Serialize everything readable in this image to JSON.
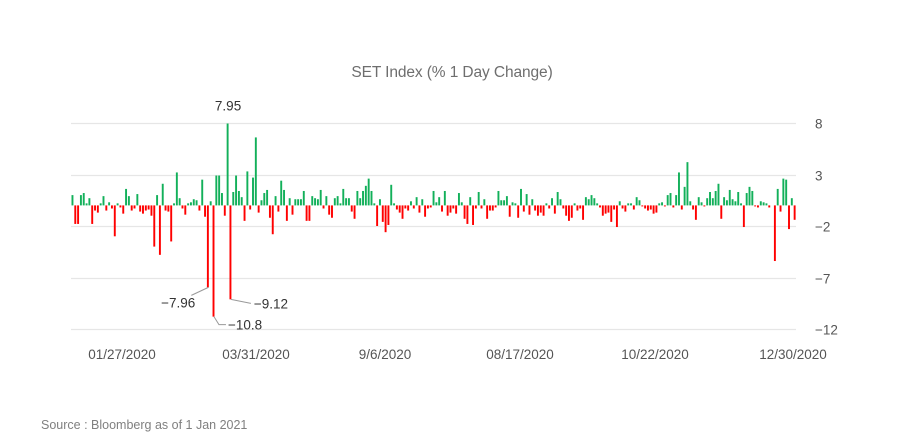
{
  "chart_data": {
    "type": "bar",
    "title": "SET Index (% 1 Day Change)",
    "xlabel": "",
    "ylabel": "",
    "ylim": [
      -12,
      8
    ],
    "yticks": [
      8,
      3,
      -2,
      -7,
      -12
    ],
    "y_axis_position": "right",
    "grid": true,
    "legend": null,
    "x_tick_labels": [
      "01/27/2020",
      "03/31/2020",
      "9/6/2020",
      "08/17/2020",
      "10/22/2020",
      "12/30/2020"
    ],
    "x_tick_index": [
      14,
      56,
      107,
      157,
      207,
      249
    ],
    "positive_color": "#12b05a",
    "negative_color": "#ff0000",
    "gridline_color": "#e6e6e6",
    "annotations": [
      {
        "index": 55,
        "value": 7.95,
        "label": "7.95"
      },
      {
        "index": 48,
        "value": -7.96,
        "label": "-7.96"
      },
      {
        "index": 50,
        "value": -10.8,
        "label": "-10.8"
      },
      {
        "index": 56,
        "value": -9.12,
        "label": "-9.12"
      }
    ],
    "values": [
      1.0,
      -1.8,
      -1.8,
      1.0,
      1.2,
      0.2,
      0.7,
      -1.8,
      -0.5,
      -0.7,
      0.2,
      0.9,
      -0.5,
      0.3,
      -0.3,
      -3.0,
      0.2,
      -0.2,
      -0.8,
      1.6,
      0.9,
      -0.5,
      -0.3,
      1.1,
      -0.6,
      -0.8,
      -0.5,
      -0.4,
      -1.0,
      -4.0,
      1.0,
      -4.8,
      2.1,
      -0.5,
      -0.6,
      -3.5,
      0.2,
      3.2,
      0.7,
      -0.3,
      -0.9,
      0.2,
      0.3,
      0.6,
      0.5,
      -0.5,
      2.5,
      -1.1,
      -7.96,
      0.4,
      -10.8,
      2.9,
      2.9,
      1.2,
      -1.0,
      7.95,
      -9.12,
      1.3,
      2.9,
      1.4,
      0.8,
      -1.5,
      3.3,
      -0.4,
      2.7,
      6.6,
      -0.7,
      0.5,
      1.2,
      1.5,
      -1.2,
      -2.8,
      0.9,
      -0.6,
      2.4,
      1.5,
      -1.5,
      0.7,
      -0.9,
      0.6,
      0.6,
      0.6,
      1.4,
      -1.5,
      -1.5,
      0.9,
      0.7,
      0.6,
      1.5,
      -0.3,
      0.9,
      -0.9,
      -1.2,
      0.7,
      0.9,
      0.2,
      1.6,
      0.7,
      0.7,
      -0.6,
      -1.3,
      1.4,
      0.7,
      1.4,
      1.9,
      2.6,
      1.4,
      0.2,
      -2.0,
      0.6,
      -1.6,
      -2.6,
      -1.9,
      2.0,
      0.2,
      -0.4,
      -0.7,
      -1.3,
      -0.3,
      -0.5,
      0.4,
      -0.3,
      0.8,
      -0.7,
      0.6,
      -1.1,
      -0.3,
      -0.2,
      1.4,
      0.3,
      0.8,
      -0.6,
      1.4,
      -1.0,
      -0.7,
      -0.3,
      -0.8,
      1.2,
      0.3,
      -1.3,
      -1.8,
      0.8,
      -1.9,
      -0.3,
      1.3,
      -0.3,
      0.6,
      -1.3,
      -0.5,
      -0.5,
      -0.2,
      1.4,
      0.5,
      0.5,
      0.9,
      -1.1,
      0.3,
      0.2,
      -1.2,
      1.6,
      -0.6,
      1.1,
      -0.9,
      0.6,
      -0.5,
      -1.0,
      -0.7,
      -1.0,
      0.2,
      -0.3,
      0.7,
      -0.8,
      1.3,
      0.6,
      -0.3,
      -1.0,
      -1.5,
      -1.2,
      0.2,
      -0.5,
      -0.3,
      -1.4,
      0.8,
      0.6,
      1.0,
      0.7,
      0.2,
      -0.2,
      -1.0,
      -0.8,
      -0.7,
      -1.6,
      -0.4,
      -2.1,
      0.4,
      -0.3,
      -0.6,
      0.2,
      0.2,
      -0.4,
      0.8,
      0.5,
      -0.1,
      -0.3,
      -0.5,
      -0.4,
      -0.8,
      -0.7,
      0.2,
      0.3,
      -0.1,
      1.0,
      1.2,
      -0.2,
      1.0,
      3.2,
      -0.4,
      1.8,
      4.2,
      0.4,
      -0.4,
      -1.4,
      0.8,
      0.3,
      -0.1,
      0.7,
      1.3,
      0.7,
      1.4,
      2.1,
      -1.3,
      0.8,
      0.5,
      1.5,
      0.6,
      0.4,
      1.3,
      0.2,
      -2.1,
      1.2,
      1.8,
      1.4,
      -0.1,
      -0.2,
      0.4,
      0.3,
      0.2,
      -0.2,
      0.0,
      -5.4,
      1.6,
      -0.6,
      2.6,
      2.5,
      -2.3,
      0.7,
      -1.4
    ]
  },
  "source_note": "Source : Bloomberg as of 1 Jan 2021"
}
